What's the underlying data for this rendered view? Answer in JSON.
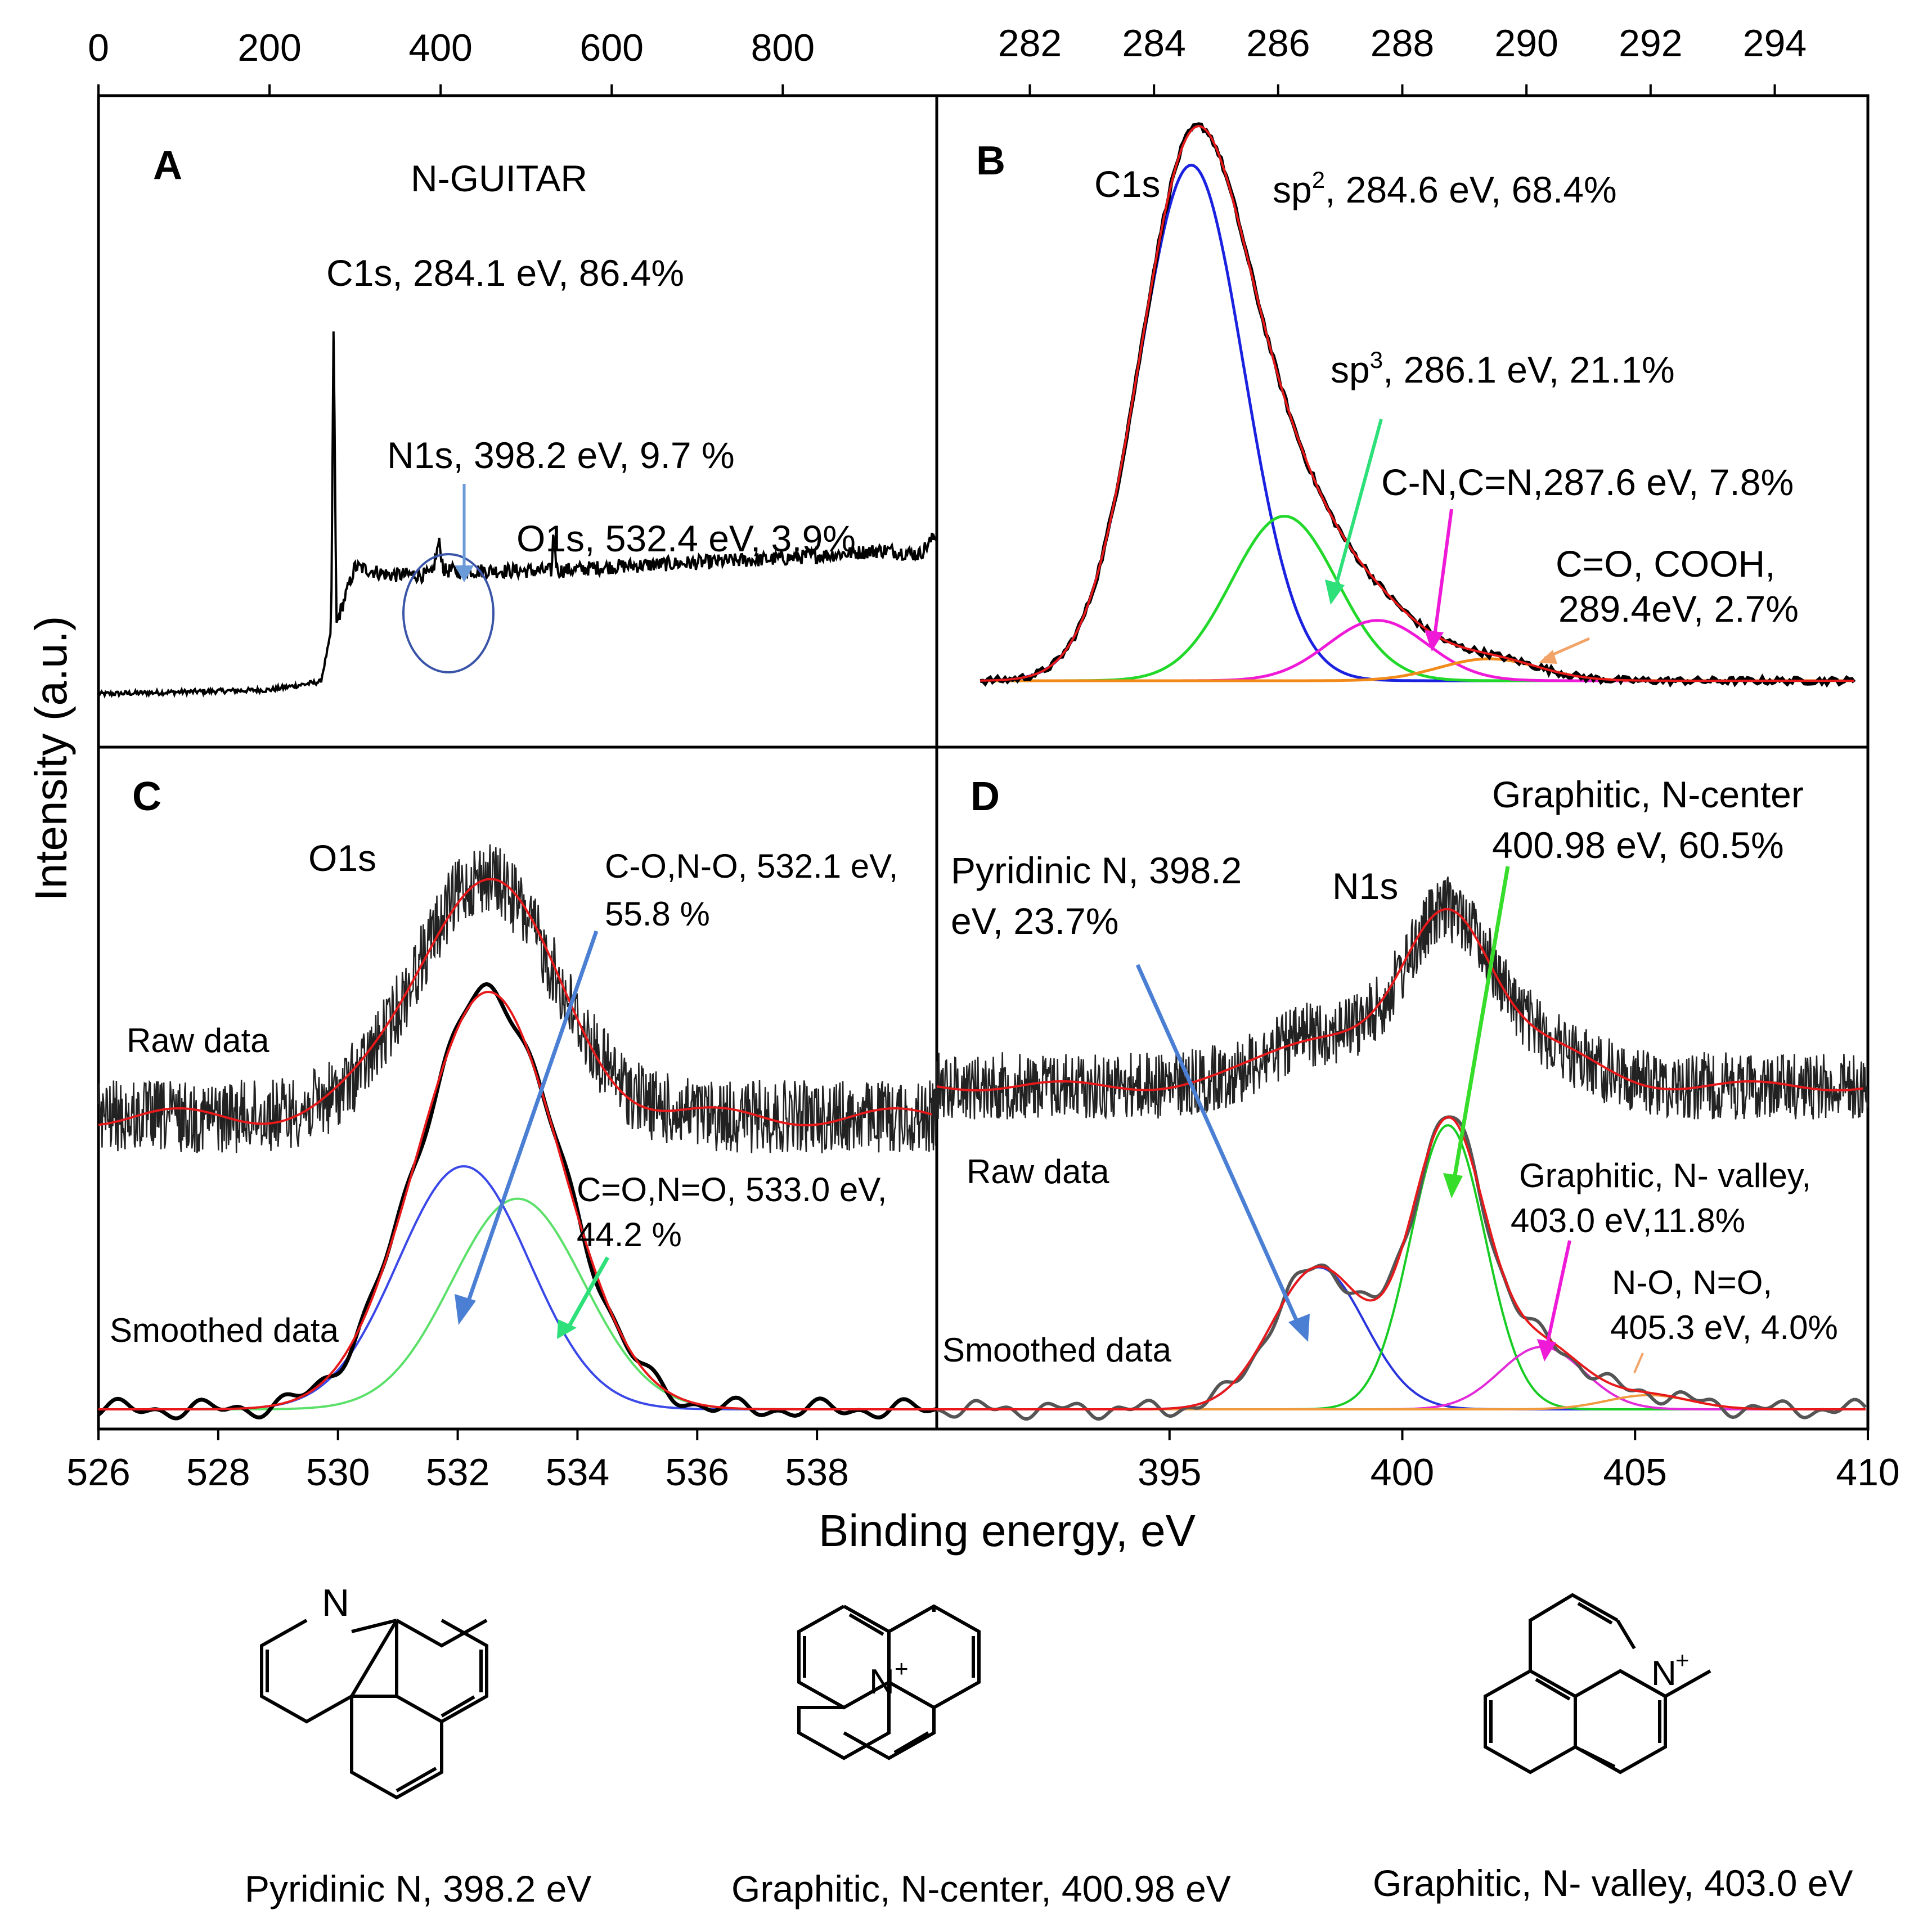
{
  "figure": {
    "y_axis_label": "Intensity (a.u.)",
    "x_axis_label": "Binding energy, eV"
  },
  "colors": {
    "raw": "#000000",
    "fit": "#e8191a",
    "sp2": "#1a22e0",
    "sp3": "#22d82a",
    "cn": "#ef1ad8",
    "cooh": "#f28a1a",
    "o1_blue": "#3a48e8",
    "o1_green": "#5be06a",
    "pyridinic": "#2a34dc",
    "graphitic_center": "#18cc24",
    "graphitic_valley": "#e22ad8",
    "no_peak": "#f09a40",
    "arrow_blue": "#4a7fd4",
    "arrow_green": "#2ee07a",
    "arrow_green2": "#36dd2a",
    "arrow_magenta": "#ef1ad8",
    "arrow_orange": "#f2a468",
    "circle": "#3a55a8"
  },
  "chart_data": [
    {
      "panel": "A",
      "type": "line",
      "title": "N-GUITAR",
      "x_ticks": [
        "0",
        "200",
        "400",
        "600",
        "800"
      ],
      "xlim": [
        0,
        980
      ],
      "series": [
        {
          "x": [
            0,
            200,
            260,
            272,
            275,
            278,
            300,
            340,
            390,
            398,
            404,
            450,
            530,
            532,
            536,
            600,
            700,
            800,
            920,
            960,
            980
          ],
          "y": [
            0.05,
            0.06,
            0.08,
            0.2,
            0.98,
            0.22,
            0.36,
            0.34,
            0.34,
            0.42,
            0.35,
            0.35,
            0.35,
            0.45,
            0.35,
            0.36,
            0.37,
            0.38,
            0.4,
            0.39,
            0.44
          ]
        }
      ],
      "annotations": [
        {
          "text": "C1s, 284.1 eV, 86.4%"
        },
        {
          "text": "N1s, 398.2 eV, 9.7 %"
        },
        {
          "text": "O1s, 532.4 eV, 3.9%"
        }
      ]
    },
    {
      "panel": "B",
      "type": "line",
      "label": "C1s",
      "x_ticks": [
        "282",
        "284",
        "286",
        "288",
        "290",
        "292",
        "294"
      ],
      "xlim": [
        280.5,
        295.5
      ],
      "components": [
        {
          "name": "sp2",
          "center": 284.6,
          "height": 0.94,
          "sigma": 0.85,
          "annotation": "sp2, 284.6 eV, 68.4%"
        },
        {
          "name": "sp3",
          "center": 286.1,
          "height": 0.3,
          "sigma": 0.85,
          "annotation": "sp3, 286.1 eV, 21.1%"
        },
        {
          "name": "C-N, C=N",
          "center": 287.6,
          "height": 0.11,
          "sigma": 0.8,
          "annotation": "C-N,C=N,287.6 eV, 7.8%"
        },
        {
          "name": "C=O, COOH",
          "center": 289.4,
          "height": 0.04,
          "sigma": 0.8,
          "annotation": "C=O, COOH, 289.4eV, 2.7%"
        }
      ]
    },
    {
      "panel": "C",
      "type": "line",
      "label": "O1s",
      "x_ticks": [
        "526",
        "528",
        "530",
        "532",
        "534",
        "536",
        "538"
      ],
      "xlim": [
        526,
        540
      ],
      "raw_label": "Raw data",
      "smoothed_label": "Smoothed data",
      "components": [
        {
          "name": "C-O, N-O",
          "center": 532.1,
          "height": 0.6,
          "sigma": 1.1,
          "annotation_line1": "C-O,N-O, 532.1 eV,",
          "annotation_line2": "55.8 %"
        },
        {
          "name": "C=O, N=O",
          "center": 533.0,
          "height": 0.52,
          "sigma": 1.1,
          "annotation_line1": "C=O,N=O, 533.0 eV,",
          "annotation_line2": "44.2 %"
        }
      ]
    },
    {
      "panel": "D",
      "type": "line",
      "label": "N1s",
      "x_ticks": [
        "395",
        "400",
        "405",
        "410"
      ],
      "xlim": [
        390,
        410
      ],
      "raw_label": "Raw data",
      "smoothed_label": "Smoothed data",
      "components": [
        {
          "name": "Pyridinic N",
          "center": 398.2,
          "height": 0.5,
          "sigma": 1.0,
          "annotation_line1": "Pyridinic N, 398.2",
          "annotation_line2": "eV, 23.7%"
        },
        {
          "name": "Graphitic, N-center",
          "center": 400.98,
          "height": 1.0,
          "sigma": 0.8,
          "annotation_line1": "Graphitic, N-center",
          "annotation_line2": "400.98 eV, 60.5%"
        },
        {
          "name": "Graphitic, N-valley",
          "center": 403.0,
          "height": 0.22,
          "sigma": 0.9,
          "annotation_line1": "Graphitic, N- valley,",
          "annotation_line2": "403.0 eV,11.8%"
        },
        {
          "name": "N-O, N=O",
          "center": 405.3,
          "height": 0.05,
          "sigma": 0.9,
          "annotation_line1": "N-O, N=O,",
          "annotation_line2": "405.3 eV, 4.0%"
        }
      ]
    }
  ],
  "structures": [
    {
      "caption": "Pyridinic N, 398.2 eV",
      "atom": "N"
    },
    {
      "caption": "Graphitic, N-center, 400.98 eV",
      "atom": "N",
      "charge": "+"
    },
    {
      "caption": "Graphitic, N- valley, 403.0 eV",
      "atom": "N",
      "charge": "+"
    }
  ]
}
